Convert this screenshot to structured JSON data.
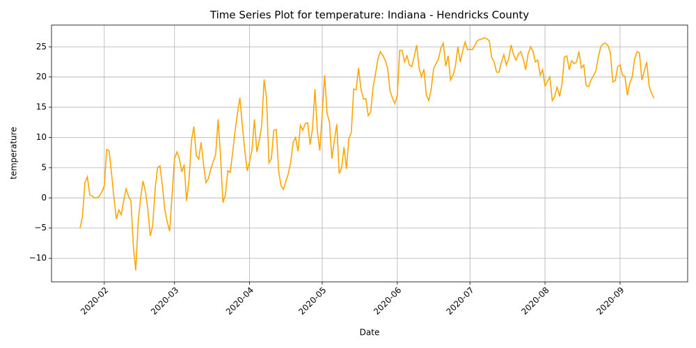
{
  "chart_data": {
    "type": "line",
    "title": "Time Series Plot for temperature: Indiana - Hendricks County",
    "x_label": "Date",
    "y_label": "temperature",
    "grid": true,
    "series": [
      {
        "name": "temperature",
        "color": "#ffa500",
        "values": [
          -5,
          -3,
          2.5,
          3.5,
          0.5,
          0.3,
          0,
          0,
          0.3,
          1,
          2,
          8,
          7.8,
          4,
          0,
          -3.5,
          -2,
          -2.8,
          -0.5,
          1.5,
          0.3,
          -0.5,
          -8,
          -12,
          -4,
          0,
          2.8,
          1,
          -2,
          -6.3,
          -4.5,
          1.5,
          5,
          5.3,
          2,
          -2,
          -4,
          -5.5,
          0.5,
          6.5,
          7.6,
          6.5,
          4.3,
          5.5,
          -0.5,
          3,
          9.5,
          11.8,
          7,
          6.4,
          9.2,
          5.5,
          2.5,
          3.2,
          4.8,
          6,
          7.2,
          13,
          7,
          -0.8,
          0.5,
          4.5,
          4.2,
          7.5,
          11,
          14,
          16.6,
          12,
          8,
          4.5,
          6,
          8,
          13,
          7.6,
          9.5,
          12,
          19.6,
          16.5,
          5.8,
          6.5,
          11.2,
          11.3,
          4.5,
          2,
          1.4,
          2.8,
          4,
          6,
          9.2,
          10,
          7.7,
          12,
          11.2,
          12.3,
          12.4,
          8.8,
          11.5,
          18,
          11,
          7.8,
          14,
          20.3,
          14,
          12.5,
          6.5,
          9.5,
          12.2,
          4,
          5,
          8.4,
          4.8,
          9.8,
          10.8,
          18,
          17.9,
          21.5,
          18,
          16.4,
          16.4,
          13.6,
          14.2,
          18.3,
          20.5,
          23,
          24.2,
          23.6,
          22.8,
          21.5,
          17.7,
          16.5,
          15.6,
          17,
          24.4,
          24.4,
          22.5,
          23.5,
          22,
          21.7,
          23.4,
          25.3,
          21.5,
          20,
          21.3,
          17,
          16.1,
          18,
          21.4,
          22.2,
          23,
          24.8,
          25.6,
          21.8,
          23.5,
          19.5,
          20.3,
          21.8,
          25,
          22.5,
          24.3,
          25.8,
          24.5,
          24.6,
          24.5,
          25.2,
          26,
          26.2,
          26.3,
          26.5,
          26.3,
          26,
          23.2,
          22.5,
          20.8,
          20.8,
          22.5,
          23.7,
          22,
          23,
          25.3,
          23.7,
          22.8,
          23.8,
          24.2,
          23,
          21.2,
          23.8,
          25,
          24.3,
          22.5,
          22.8,
          20.3,
          21.2,
          18.5,
          19.3,
          20,
          16.1,
          16.8,
          18.4,
          16.8,
          18.8,
          23.3,
          23.5,
          21.2,
          22.7,
          22.2,
          22.5,
          24.2,
          21.5,
          22,
          18.6,
          18.4,
          19.5,
          20.2,
          21,
          23.3,
          25,
          25.5,
          25.6,
          25.2,
          24,
          19.2,
          19.4,
          21.7,
          22,
          20.3,
          20.1,
          17,
          19,
          20,
          23,
          24.2,
          24,
          19.5,
          21,
          22.5,
          18.5,
          17.3,
          16.5
        ]
      }
    ],
    "xlim": [
      -11.8,
      250.9
    ],
    "xticks": [
      {
        "value": 10,
        "label": "2020-02"
      },
      {
        "value": 39,
        "label": "2020-03"
      },
      {
        "value": 70,
        "label": "2020-04"
      },
      {
        "value": 100,
        "label": "2020-05"
      },
      {
        "value": 131,
        "label": "2020-06"
      },
      {
        "value": 161,
        "label": "2020-07"
      },
      {
        "value": 192,
        "label": "2020-08"
      },
      {
        "value": 223,
        "label": "2020-09"
      }
    ],
    "ylim": [
      -13.9,
      28.6
    ],
    "yticks": [
      {
        "value": -10,
        "label": "−10"
      },
      {
        "value": -5,
        "label": "−5"
      },
      0,
      5,
      10,
      15,
      20,
      25
    ]
  }
}
